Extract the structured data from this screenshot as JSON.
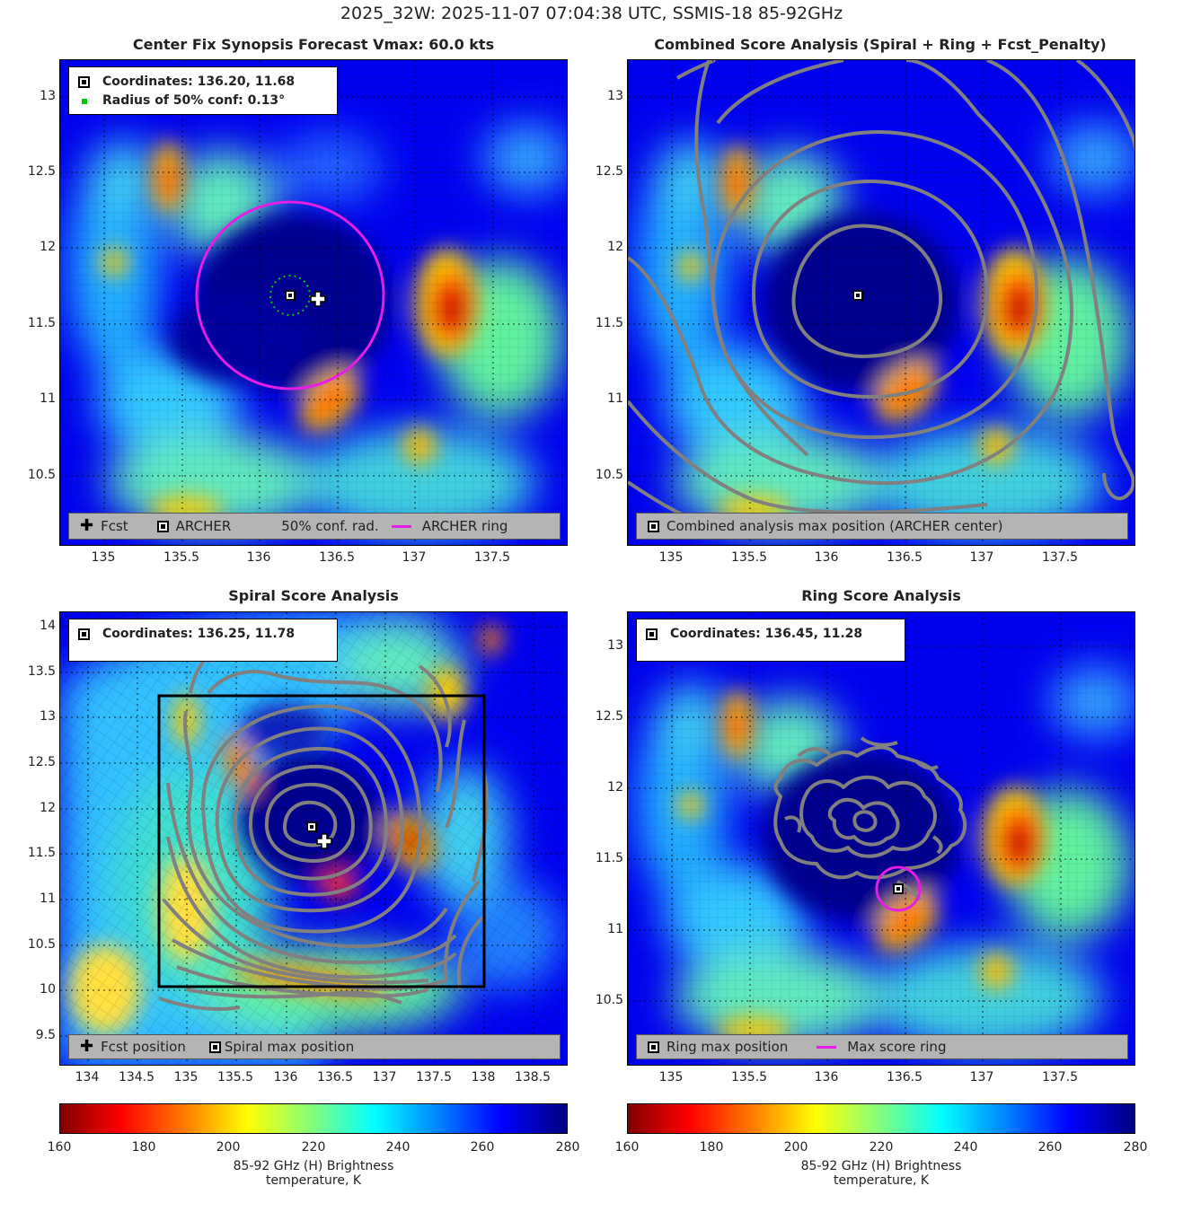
{
  "suptitle": "2025_32W: 2025-11-07 07:04:38 UTC, SSMIS-18 85-92GHz",
  "panels": {
    "p1": {
      "title": "Center Fix Synopsis     Forecast Vmax: 60.0 kts",
      "legend": [
        "Coordinates: 136.20, 11.68",
        "Radius of 50% conf: 0.13°"
      ],
      "bottom_legend": [
        "Fcst",
        "ARCHER",
        "50% conf. rad.",
        "ARCHER ring"
      ]
    },
    "p2": {
      "title": "Combined Score Analysis (Spiral + Ring + Fcst_Penalty)",
      "bottom_legend": [
        "Combined analysis max position (ARCHER center)"
      ]
    },
    "p3": {
      "title": "Spiral Score Analysis",
      "legend": [
        "Coordinates: 136.25, 11.78"
      ],
      "bottom_legend": [
        "Fcst position",
        "Spiral max position"
      ]
    },
    "p4": {
      "title": "Ring Score Analysis",
      "legend": [
        "Coordinates: 136.45, 11.28"
      ],
      "bottom_legend": [
        "Ring max position",
        "Max score ring"
      ]
    }
  },
  "colorbar": {
    "label": "85-92 GHz (H) Brightness temperature, K",
    "ticks": [
      "160",
      "180",
      "200",
      "220",
      "240",
      "260",
      "280"
    ],
    "colormap": [
      "#800000",
      "#ff0000",
      "#ff8000",
      "#ffff00",
      "#80ff80",
      "#00ffff",
      "#0080ff",
      "#0000ff",
      "#000080"
    ]
  },
  "chart_data": [
    {
      "type": "heatmap",
      "title": "Center Fix Synopsis     Forecast Vmax: 60.0 kts",
      "xticks": [
        "135",
        "135.5",
        "136",
        "136.5",
        "137",
        "137.5"
      ],
      "yticks": [
        "10.5",
        "11",
        "11.5",
        "12",
        "12.5",
        "13"
      ],
      "xlim": [
        134.7,
        137.95
      ],
      "ylim": [
        10.03,
        13.25
      ],
      "clim": [
        160,
        280
      ],
      "archer_center": [
        136.2,
        11.68
      ],
      "forecast_position": [
        136.35,
        11.63
      ],
      "confidence_radius_deg": 0.13,
      "archer_ring_radius_deg": 0.6,
      "cold_cores": [
        {
          "lon": 137.2,
          "lat": 11.6,
          "tb": 168
        },
        {
          "lon": 136.4,
          "lat": 11.05,
          "tb": 170
        },
        {
          "lon": 135.5,
          "lat": 12.5,
          "tb": 195
        }
      ]
    },
    {
      "type": "heatmap",
      "title": "Combined Score Analysis (Spiral + Ring + Fcst_Penalty)",
      "xticks": [
        "135",
        "135.5",
        "136",
        "136.5",
        "137",
        "137.5"
      ],
      "yticks": [
        "10.5",
        "11",
        "11.5",
        "12",
        "12.5",
        "13"
      ],
      "xlim": [
        134.7,
        137.95
      ],
      "ylim": [
        10.03,
        13.25
      ],
      "clim": [
        160,
        280
      ],
      "max_position": [
        136.2,
        11.68
      ]
    },
    {
      "type": "heatmap",
      "title": "Spiral Score Analysis",
      "xticks": [
        "134",
        "134.5",
        "135",
        "135.5",
        "136",
        "136.5",
        "137",
        "137.5",
        "138",
        "138.5"
      ],
      "yticks": [
        "9.5",
        "10",
        "10.5",
        "11",
        "11.5",
        "12",
        "12.5",
        "13",
        "13.5",
        "14"
      ],
      "xlim": [
        133.7,
        138.8
      ],
      "ylim": [
        9.15,
        14.15
      ],
      "clim": [
        160,
        280
      ],
      "spiral_max_position": [
        136.25,
        11.78
      ],
      "forecast_position": [
        136.35,
        11.63
      ],
      "search_box": {
        "lon": [
          134.7,
          138.0
        ],
        "lat": [
          10.05,
          13.25
        ]
      }
    },
    {
      "type": "heatmap",
      "title": "Ring Score Analysis",
      "xticks": [
        "135",
        "135.5",
        "136",
        "136.5",
        "137",
        "137.5"
      ],
      "yticks": [
        "10.5",
        "11",
        "11.5",
        "12",
        "12.5",
        "13"
      ],
      "xlim": [
        134.7,
        137.95
      ],
      "ylim": [
        10.03,
        13.25
      ],
      "clim": [
        160,
        280
      ],
      "ring_max_position": [
        136.45,
        11.28
      ],
      "max_score_ring_radius_deg": 0.15
    }
  ]
}
